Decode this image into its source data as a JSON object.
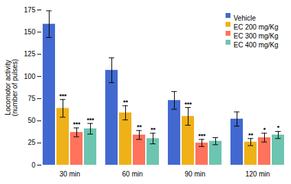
{
  "chart_data": {
    "type": "bar",
    "ylabel": "Locomotor activity\n(number of pulses)",
    "categories": [
      "30 min",
      "60 min",
      "90 min",
      "120 min"
    ],
    "series": [
      {
        "name": "Vehicle",
        "values": [
          159,
          107,
          73,
          52
        ],
        "errors": [
          15,
          14,
          10,
          8
        ],
        "significance": [
          null,
          null,
          null,
          null
        ]
      },
      {
        "name": "EC 200 mg/Kg",
        "values": [
          64,
          59,
          55,
          26
        ],
        "errors": [
          10,
          8,
          10,
          4
        ],
        "significance": [
          "***",
          "**",
          "***",
          "**"
        ]
      },
      {
        "name": "EC 300 mg/Kg",
        "values": [
          37,
          34,
          25,
          31
        ],
        "errors": [
          5,
          5,
          4,
          5
        ],
        "significance": [
          "***",
          "**",
          "***",
          "*"
        ]
      },
      {
        "name": "EC 400 mg/Kg",
        "values": [
          41,
          30,
          27,
          34
        ],
        "errors": [
          6,
          6,
          4,
          4
        ],
        "significance": [
          "***",
          "**",
          null,
          "*"
        ]
      }
    ],
    "ylim": [
      0,
      175
    ],
    "yticks": [
      0,
      25,
      50,
      75,
      100,
      125,
      150,
      175
    ],
    "grid": false,
    "legend": "upper right"
  }
}
